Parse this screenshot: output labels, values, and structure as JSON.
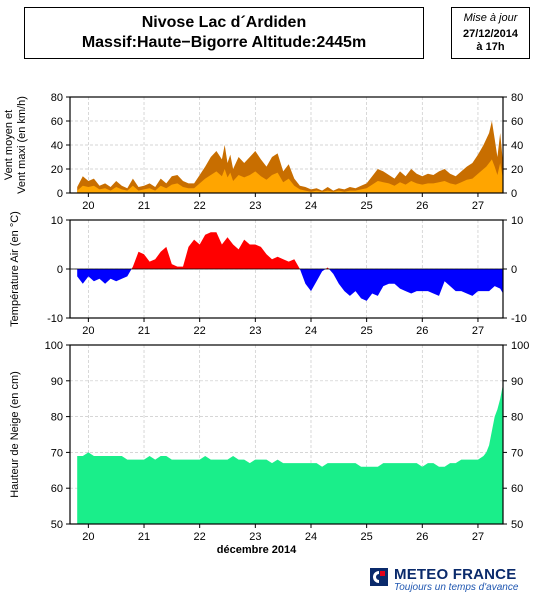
{
  "header": {
    "title_line1": "Nivose Lac d´Ardiden",
    "title_line2": "Massif:Haute−Bigorre Altitude:2445m"
  },
  "update": {
    "label": "Mise à jour",
    "date": "27/12/2014",
    "time": "à 17h"
  },
  "logo": {
    "name": "METEO FRANCE",
    "tagline": "Toujours un temps d'avance"
  },
  "colors": {
    "wind_max": "#c86e00",
    "wind_mean": "#ffa500",
    "temp_positive": "#ff0000",
    "temp_negative": "#0000ff",
    "snow": "#1aee8a"
  },
  "chart_data": [
    {
      "type": "area",
      "ylabel": "Vent moyen et\nVent maxi (en km/h)",
      "x_labels": [
        "20",
        "21",
        "22",
        "23",
        "24",
        "25",
        "26",
        "27"
      ],
      "ylim": [
        0,
        80
      ],
      "yticks": [
        0,
        20,
        40,
        60,
        80
      ],
      "grid": true,
      "series": [
        {
          "key": "wind_max",
          "color": "#c86e00",
          "x": [
            19.8,
            19.9,
            20.0,
            20.1,
            20.2,
            20.3,
            20.4,
            20.5,
            20.6,
            20.7,
            20.8,
            20.9,
            21.0,
            21.1,
            21.2,
            21.3,
            21.4,
            21.5,
            21.6,
            21.7,
            21.8,
            21.9,
            22.0,
            22.1,
            22.2,
            22.3,
            22.4,
            22.45,
            22.5,
            22.55,
            22.6,
            22.7,
            22.8,
            22.9,
            23.0,
            23.1,
            23.2,
            23.3,
            23.4,
            23.5,
            23.6,
            23.7,
            23.8,
            23.9,
            24.0,
            24.1,
            24.2,
            24.3,
            24.4,
            24.5,
            24.6,
            24.7,
            24.8,
            24.9,
            25.0,
            25.1,
            25.2,
            25.3,
            25.4,
            25.5,
            25.6,
            25.7,
            25.8,
            25.9,
            26.0,
            26.1,
            26.2,
            26.3,
            26.4,
            26.5,
            26.6,
            26.7,
            26.8,
            26.9,
            27.0,
            27.1,
            27.15,
            27.2,
            27.25,
            27.3,
            27.35,
            27.4,
            27.45
          ],
          "values": [
            5,
            14,
            10,
            12,
            6,
            8,
            5,
            10,
            6,
            4,
            12,
            5,
            6,
            8,
            5,
            12,
            8,
            14,
            15,
            10,
            8,
            8,
            15,
            22,
            30,
            35,
            28,
            40,
            25,
            32,
            20,
            30,
            25,
            30,
            35,
            28,
            22,
            30,
            33,
            18,
            24,
            12,
            6,
            5,
            3,
            4,
            2,
            5,
            2,
            4,
            3,
            5,
            4,
            6,
            8,
            14,
            20,
            18,
            15,
            12,
            18,
            14,
            20,
            16,
            14,
            16,
            15,
            18,
            20,
            16,
            14,
            18,
            22,
            25,
            32,
            40,
            45,
            50,
            60,
            45,
            30,
            50,
            25
          ]
        },
        {
          "key": "wind_mean",
          "color": "#ffa500",
          "x": [
            19.8,
            19.9,
            20.0,
            20.1,
            20.2,
            20.3,
            20.4,
            20.5,
            20.6,
            20.7,
            20.8,
            20.9,
            21.0,
            21.1,
            21.2,
            21.3,
            21.4,
            21.5,
            21.6,
            21.7,
            21.8,
            21.9,
            22.0,
            22.1,
            22.2,
            22.3,
            22.4,
            22.45,
            22.5,
            22.55,
            22.6,
            22.7,
            22.8,
            22.9,
            23.0,
            23.1,
            23.2,
            23.3,
            23.4,
            23.5,
            23.6,
            23.7,
            23.8,
            23.9,
            24.0,
            24.1,
            24.2,
            24.3,
            24.4,
            24.5,
            24.6,
            24.7,
            24.8,
            24.9,
            25.0,
            25.1,
            25.2,
            25.3,
            25.4,
            25.5,
            25.6,
            25.7,
            25.8,
            25.9,
            26.0,
            26.1,
            26.2,
            26.3,
            26.4,
            26.5,
            26.6,
            26.7,
            26.8,
            26.9,
            27.0,
            27.1,
            27.15,
            27.2,
            27.25,
            27.3,
            27.35,
            27.4,
            27.45
          ],
          "values": [
            2,
            6,
            5,
            6,
            3,
            4,
            2,
            5,
            3,
            2,
            6,
            2,
            3,
            4,
            2,
            6,
            4,
            7,
            8,
            5,
            4,
            4,
            8,
            12,
            15,
            18,
            14,
            20,
            13,
            17,
            10,
            15,
            13,
            15,
            18,
            14,
            11,
            15,
            17,
            9,
            12,
            6,
            3,
            2,
            1,
            2,
            1,
            2,
            1,
            2,
            1,
            2,
            2,
            3,
            4,
            7,
            10,
            9,
            8,
            6,
            9,
            7,
            10,
            8,
            7,
            8,
            8,
            9,
            10,
            8,
            7,
            9,
            11,
            12,
            16,
            20,
            22,
            25,
            28,
            22,
            15,
            25,
            12
          ]
        }
      ]
    },
    {
      "type": "area",
      "ylabel": "Température Air (en °C)",
      "x_labels": [
        "20",
        "21",
        "22",
        "23",
        "24",
        "25",
        "26",
        "27"
      ],
      "ylim": [
        -10,
        10
      ],
      "yticks": [
        -10,
        0,
        10
      ],
      "grid": true,
      "baseline": 0,
      "series": [
        {
          "key": "temperature",
          "x": [
            19.8,
            19.9,
            20.0,
            20.1,
            20.2,
            20.3,
            20.4,
            20.5,
            20.6,
            20.7,
            20.8,
            20.9,
            21.0,
            21.1,
            21.2,
            21.3,
            21.4,
            21.5,
            21.6,
            21.7,
            21.8,
            21.9,
            22.0,
            22.1,
            22.2,
            22.3,
            22.4,
            22.5,
            22.6,
            22.7,
            22.8,
            22.9,
            23.0,
            23.1,
            23.2,
            23.3,
            23.4,
            23.5,
            23.6,
            23.7,
            23.8,
            23.9,
            24.0,
            24.1,
            24.2,
            24.3,
            24.4,
            24.5,
            24.6,
            24.7,
            24.8,
            24.9,
            25.0,
            25.1,
            25.2,
            25.3,
            25.4,
            25.5,
            25.6,
            25.7,
            25.8,
            25.9,
            26.0,
            26.1,
            26.2,
            26.3,
            26.4,
            26.5,
            26.6,
            26.7,
            26.8,
            26.9,
            27.0,
            27.1,
            27.2,
            27.3,
            27.4,
            27.45
          ],
          "values": [
            -1.5,
            -3,
            -1.5,
            -2.5,
            -2,
            -3,
            -2,
            -2.5,
            -2,
            -1.5,
            0.5,
            3.5,
            3,
            1.5,
            2,
            3.5,
            4.5,
            1,
            0.5,
            0.5,
            4.5,
            6,
            5,
            7,
            7.5,
            7.5,
            5,
            6.5,
            5,
            4,
            6,
            5,
            5,
            4.5,
            3,
            2,
            2.5,
            2,
            1.5,
            2,
            0,
            -3,
            -4.5,
            -2.5,
            -0.5,
            0.3,
            -1,
            -3,
            -4.5,
            -5.5,
            -4.5,
            -6,
            -6.5,
            -5,
            -5.5,
            -3.5,
            -3,
            -3,
            -4,
            -4.5,
            -5,
            -4.5,
            -4.5,
            -4.5,
            -5,
            -5.5,
            -2.5,
            -3.5,
            -4.5,
            -4.5,
            -5,
            -5.5,
            -4.5,
            -4.5,
            -4.5,
            -3.5,
            -4,
            -5
          ]
        }
      ]
    },
    {
      "type": "area",
      "ylabel": "Hauteur de Neige (en cm)",
      "x_labels": [
        "20",
        "21",
        "22",
        "23",
        "24",
        "25",
        "26",
        "27"
      ],
      "xlabel": "décembre 2014",
      "ylim": [
        50,
        100
      ],
      "yticks": [
        50,
        60,
        70,
        80,
        90,
        100
      ],
      "grid": true,
      "series": [
        {
          "key": "snow_depth",
          "color": "#1aee8a",
          "x": [
            19.8,
            19.9,
            20.0,
            20.1,
            20.2,
            20.3,
            20.4,
            20.5,
            20.6,
            20.7,
            20.8,
            20.9,
            21.0,
            21.1,
            21.2,
            21.3,
            21.4,
            21.5,
            21.6,
            21.7,
            21.8,
            21.9,
            22.0,
            22.1,
            22.2,
            22.3,
            22.4,
            22.5,
            22.6,
            22.7,
            22.8,
            22.9,
            23.0,
            23.1,
            23.2,
            23.3,
            23.4,
            23.5,
            23.6,
            23.7,
            23.8,
            23.9,
            24.0,
            24.1,
            24.2,
            24.3,
            24.4,
            24.5,
            24.6,
            24.7,
            24.8,
            24.9,
            25.0,
            25.1,
            25.2,
            25.3,
            25.4,
            25.5,
            25.6,
            25.7,
            25.8,
            25.9,
            26.0,
            26.1,
            26.2,
            26.3,
            26.4,
            26.5,
            26.6,
            26.7,
            26.8,
            26.9,
            27.0,
            27.1,
            27.15,
            27.2,
            27.25,
            27.3,
            27.35,
            27.4,
            27.45
          ],
          "values": [
            69,
            69,
            70,
            69,
            69,
            69,
            69,
            69,
            69,
            68,
            68,
            68,
            68,
            69,
            68,
            69,
            69,
            68,
            68,
            68,
            68,
            68,
            68,
            69,
            68,
            68,
            68,
            68,
            69,
            68,
            68,
            67,
            68,
            68,
            68,
            67,
            68,
            67,
            67,
            67,
            67,
            67,
            67,
            67,
            66,
            67,
            67,
            67,
            67,
            67,
            67,
            66,
            66,
            66,
            66,
            67,
            67,
            67,
            67,
            67,
            67,
            67,
            66,
            67,
            67,
            66,
            66,
            67,
            67,
            68,
            68,
            68,
            68,
            69,
            70,
            72,
            76,
            80,
            82,
            85,
            89
          ]
        }
      ]
    }
  ]
}
